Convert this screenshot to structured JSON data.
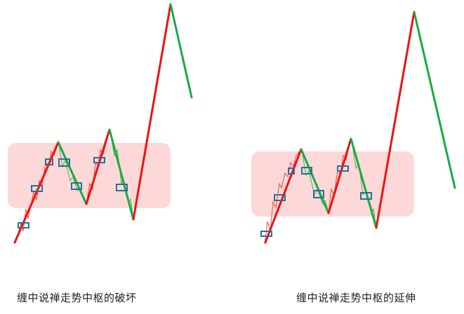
{
  "captions": {
    "left": "缠中说禅走势中枢的破坏",
    "right": "缠中说禅走势中枢的延伸"
  },
  "colors": {
    "up": "#ee1111",
    "down": "#1aaa44",
    "zone": "#fdd8d8",
    "box": "#2a6f9a",
    "wick": "#999999"
  }
}
